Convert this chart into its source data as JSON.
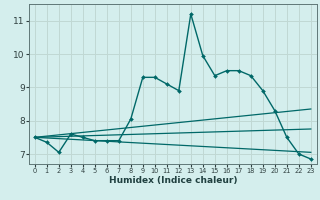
{
  "xlabel": "Humidex (Indice chaleur)",
  "ylabel": "",
  "background_color": "#d4eeed",
  "grid_color": "#c0d8d4",
  "line_color": "#006868",
  "xlim": [
    -0.5,
    23.5
  ],
  "ylim": [
    6.7,
    11.5
  ],
  "yticks": [
    7,
    8,
    9,
    10,
    11
  ],
  "xticks": [
    0,
    1,
    2,
    3,
    4,
    5,
    6,
    7,
    8,
    9,
    10,
    11,
    12,
    13,
    14,
    15,
    16,
    17,
    18,
    19,
    20,
    21,
    22,
    23
  ],
  "series": [
    {
      "x": [
        0,
        1,
        2,
        3,
        4,
        5,
        6,
        7,
        8,
        9,
        10,
        11,
        12,
        13,
        14,
        15,
        16,
        17,
        18,
        19,
        20,
        21,
        22,
        23
      ],
      "y": [
        7.5,
        7.35,
        7.05,
        7.6,
        7.5,
        7.4,
        7.4,
        7.4,
        8.05,
        9.3,
        9.3,
        9.1,
        8.9,
        11.2,
        9.95,
        9.35,
        9.5,
        9.5,
        9.35,
        8.9,
        8.3,
        7.5,
        7.0,
        6.85
      ],
      "color": "#006868",
      "linewidth": 1.0,
      "marker": "D",
      "markersize": 2.0
    },
    {
      "x": [
        0,
        23
      ],
      "y": [
        7.5,
        8.35
      ],
      "color": "#006868",
      "linewidth": 0.9,
      "marker": null
    },
    {
      "x": [
        0,
        23
      ],
      "y": [
        7.5,
        7.75
      ],
      "color": "#006868",
      "linewidth": 0.9,
      "marker": null
    },
    {
      "x": [
        0,
        23
      ],
      "y": [
        7.5,
        7.05
      ],
      "color": "#006868",
      "linewidth": 0.9,
      "marker": null
    }
  ]
}
